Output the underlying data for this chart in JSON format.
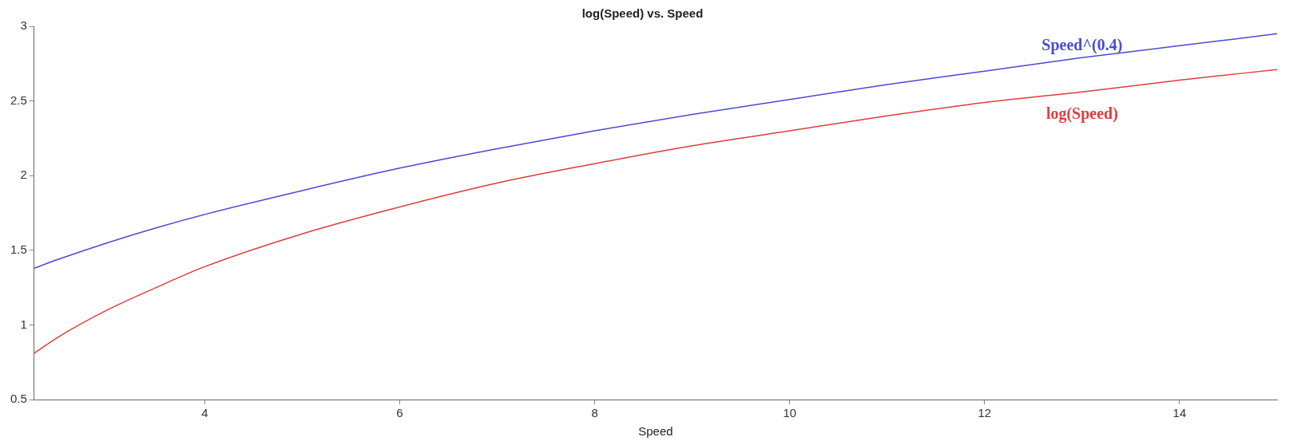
{
  "chart_data": {
    "type": "line",
    "title": "log(Speed) vs. Speed",
    "xlabel": "Speed",
    "x": [
      2.25,
      2.5,
      3,
      3.5,
      4,
      5,
      6,
      7,
      8,
      9,
      10,
      11,
      12,
      13,
      14,
      15
    ],
    "series": [
      {
        "name": "Speed^(0.4)",
        "color": "#4a4ad6",
        "values": [
          1.38,
          1.44,
          1.55,
          1.65,
          1.74,
          1.9,
          2.05,
          2.18,
          2.3,
          2.41,
          2.51,
          2.61,
          2.7,
          2.79,
          2.87,
          2.95
        ]
      },
      {
        "name": "log(Speed)",
        "color": "#e03c3c",
        "values": [
          0.81,
          0.92,
          1.1,
          1.25,
          1.39,
          1.61,
          1.79,
          1.95,
          2.08,
          2.2,
          2.3,
          2.4,
          2.49,
          2.56,
          2.64,
          2.71
        ]
      }
    ],
    "xlim": [
      2.25,
      15
    ],
    "xticks": [
      4,
      6,
      8,
      10,
      12,
      14
    ],
    "ylim": [
      0.5,
      3
    ],
    "yticks": [
      0.5,
      1,
      1.5,
      2,
      2.5,
      3
    ],
    "grid": false,
    "legend": false,
    "marker": "none",
    "line_style": "solid"
  }
}
